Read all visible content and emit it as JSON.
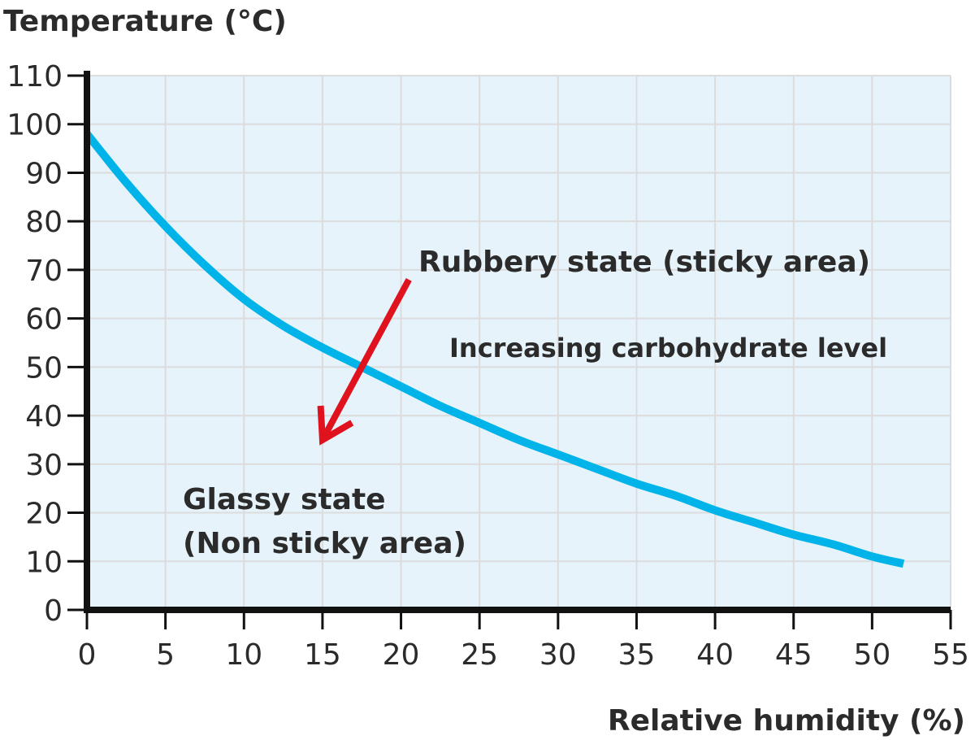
{
  "chart_data": {
    "type": "line",
    "ylabel": "Temperature (°C)",
    "xlabel": "Relative humidity (%)",
    "xlim": [
      0,
      55
    ],
    "ylim": [
      0,
      110
    ],
    "x_ticks": [
      "0",
      "5",
      "10",
      "15",
      "20",
      "25",
      "30",
      "35",
      "40",
      "45",
      "50",
      "55"
    ],
    "y_ticks": [
      "0",
      "10",
      "20",
      "30",
      "40",
      "50",
      "60",
      "70",
      "80",
      "90",
      "100",
      "110"
    ],
    "grid": true,
    "series": [
      {
        "x": [
          0,
          2.5,
          5,
          7.5,
          10,
          12.5,
          15,
          17.5,
          20,
          22.5,
          25,
          27.5,
          30,
          32.5,
          35,
          37.5,
          40,
          42.5,
          45,
          47.5,
          50,
          52
        ],
        "y": [
          98,
          88,
          79,
          71,
          64,
          58.5,
          54,
          50,
          46,
          42,
          38.5,
          35,
          32,
          29,
          26,
          23.5,
          20.5,
          18,
          15.5,
          13.5,
          11,
          9.5
        ]
      }
    ],
    "annotations": {
      "rubbery": "Rubbery state (sticky area)",
      "increasing": "Increasing carbohydrate level",
      "glassy_line1": "Glassy state",
      "glassy_line2": "(Non sticky area)"
    },
    "arrow_from": [
      20.5,
      68
    ],
    "arrow_to": [
      15,
      35
    ]
  },
  "colors": {
    "plot_background": "#e6f3fb",
    "grid": "#dcdcdc",
    "axis": "#111111",
    "curve": "#00b3e8",
    "arrow": "#e0121e",
    "text": "#2b2b2b"
  }
}
